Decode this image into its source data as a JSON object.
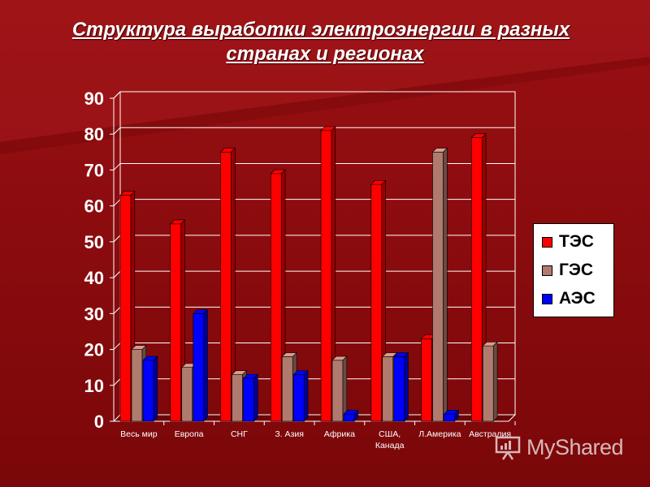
{
  "slide": {
    "title_line1": "Структура выработки электроэнергии в разных",
    "title_line2": "странах и регионах"
  },
  "legend": {
    "items": [
      {
        "label": "ТЭС",
        "color": "#ff0000"
      },
      {
        "label": "ГЭС",
        "color": "#b07b6e"
      },
      {
        "label": "АЭС",
        "color": "#0000ff"
      }
    ]
  },
  "watermark": {
    "text": "MyShared"
  },
  "colors": {
    "background": "#8c0b0d",
    "plot_background": "#8c0b0d",
    "gridline": "#ffffff",
    "tick_text_major": "#ffffff",
    "tick_text_minor": "#ffffff"
  },
  "chart_data": {
    "type": "bar",
    "title": "Структура выработки электроэнергии в разных странах и регионах",
    "categories": [
      "Весь мир",
      "Европа",
      "СНГ",
      "З. Азия",
      "Африка",
      "США, Канада",
      "Л.Америка",
      "Австралия"
    ],
    "series": [
      {
        "name": "ТЭС",
        "values": [
          63,
          55,
          75,
          69,
          81,
          66,
          23,
          79
        ]
      },
      {
        "name": "ГЭС",
        "values": [
          20,
          15,
          13,
          18,
          17,
          18,
          75,
          21
        ]
      },
      {
        "name": "АЭС",
        "values": [
          17,
          30,
          12,
          13,
          2,
          18,
          2,
          0
        ]
      }
    ],
    "yticks": [
      0,
      10,
      20,
      30,
      40,
      50,
      60,
      70,
      80,
      90
    ],
    "ylim": [
      0,
      90
    ],
    "xlabel": "",
    "ylabel": "",
    "grid": true,
    "legend_position": "right",
    "style": "3d-column"
  }
}
